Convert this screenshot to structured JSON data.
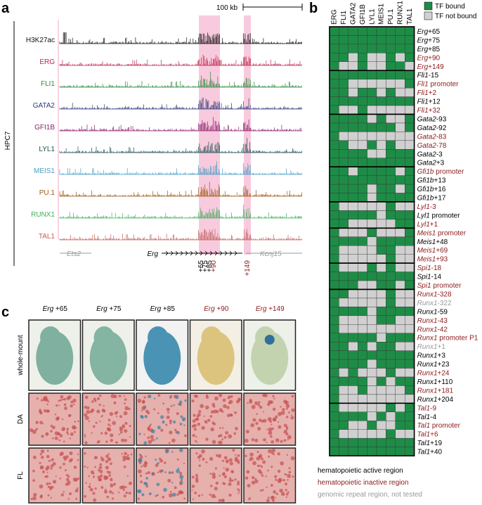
{
  "panel_a": {
    "letter": "a",
    "scale_bar": "100 kb",
    "cell_line": "HPC7",
    "tracks": [
      {
        "name": "H3K27ac",
        "color": "#111111"
      },
      {
        "name": "ERG",
        "color": "#c0264c"
      },
      {
        "name": "FLI1",
        "color": "#2e8b3e"
      },
      {
        "name": "GATA2",
        "color": "#2b3a7a"
      },
      {
        "name": "GFI1B",
        "color": "#8b1f6b"
      },
      {
        "name": "LYL1",
        "color": "#1f4f4f"
      },
      {
        "name": "MEIS1",
        "color": "#4a9cc7"
      },
      {
        "name": "PU.1",
        "color": "#9b5a1a"
      },
      {
        "name": "RUNX1",
        "color": "#3fae5c"
      },
      {
        "name": "TAL1",
        "color": "#c0605a"
      }
    ],
    "genes": [
      {
        "name": "Ets2",
        "color": "#999999"
      },
      {
        "name": "Erg",
        "color": "#000000"
      },
      {
        "name": "Kcnj15",
        "color": "#999999"
      }
    ],
    "peaks": [
      {
        "label": "+65",
        "color": "#000000"
      },
      {
        "label": "+75",
        "color": "#000000"
      },
      {
        "label": "+85",
        "color": "#000000"
      },
      {
        "label": "+90",
        "color": "#8b1a1a"
      },
      {
        "label": "+149",
        "color": "#8b1a1a"
      }
    ]
  },
  "panel_b": {
    "letter": "b",
    "legend": [
      {
        "label": "TF bound",
        "color": "#1e8c47"
      },
      {
        "label": "TF not bound",
        "color": "#d0d0d0"
      }
    ],
    "columns": [
      "ERG",
      "FLI1",
      "GATA2",
      "GFI1B",
      "LYL1",
      "MEIS1",
      "PU.1",
      "RUNX1",
      "TAL1"
    ],
    "groups": [
      [
        {
          "gene": "Erg",
          "suffix": "+65",
          "color": "#000000",
          "bound": [
            1,
            1,
            1,
            1,
            1,
            1,
            1,
            1,
            1
          ]
        },
        {
          "gene": "Erg",
          "suffix": "+75",
          "color": "#000000",
          "bound": [
            1,
            1,
            1,
            1,
            1,
            1,
            1,
            1,
            1
          ]
        },
        {
          "gene": "Erg",
          "suffix": "+85",
          "color": "#000000",
          "bound": [
            1,
            1,
            1,
            1,
            1,
            1,
            1,
            1,
            1
          ]
        },
        {
          "gene": "Erg",
          "suffix": "+90",
          "color": "#8b1a1a",
          "bound": [
            1,
            1,
            0,
            1,
            0,
            0,
            1,
            0,
            1
          ]
        },
        {
          "gene": "Erg",
          "suffix": "+149",
          "color": "#8b1a1a",
          "bound": [
            1,
            0,
            0,
            1,
            0,
            0,
            1,
            1,
            0
          ]
        }
      ],
      [
        {
          "gene": "Fli1",
          "suffix": "-15",
          "color": "#000000",
          "bound": [
            1,
            1,
            1,
            1,
            1,
            1,
            1,
            1,
            1
          ]
        },
        {
          "gene": "Fli1",
          "suffix": " promoter",
          "color": "#8b1a1a",
          "bound": [
            1,
            1,
            0,
            0,
            0,
            0,
            0,
            0,
            1
          ]
        },
        {
          "gene": "Fli1",
          "suffix": "+2",
          "color": "#8b1a1a",
          "bound": [
            1,
            1,
            0,
            1,
            1,
            0,
            1,
            0,
            0
          ]
        },
        {
          "gene": "Fli1",
          "suffix": "+12",
          "color": "#000000",
          "bound": [
            1,
            1,
            1,
            1,
            1,
            1,
            1,
            1,
            1
          ]
        },
        {
          "gene": "Fli1",
          "suffix": "+32",
          "color": "#8b1a1a",
          "bound": [
            1,
            0,
            0,
            1,
            0,
            0,
            0,
            0,
            0
          ]
        }
      ],
      [
        {
          "gene": "Gata2",
          "suffix": "-93",
          "color": "#000000",
          "bound": [
            1,
            1,
            1,
            1,
            0,
            1,
            0,
            0,
            1
          ]
        },
        {
          "gene": "Gata2",
          "suffix": "-92",
          "color": "#000000",
          "bound": [
            1,
            1,
            1,
            1,
            1,
            1,
            1,
            0,
            1
          ]
        },
        {
          "gene": "Gata2",
          "suffix": "-83",
          "color": "#8b1a1a",
          "bound": [
            1,
            0,
            0,
            0,
            0,
            0,
            0,
            0,
            0
          ]
        },
        {
          "gene": "Gata2",
          "suffix": "-78",
          "color": "#8b1a1a",
          "bound": [
            1,
            1,
            0,
            0,
            1,
            0,
            1,
            0,
            0
          ]
        },
        {
          "gene": "Gata2",
          "suffix": "-3",
          "color": "#000000",
          "bound": [
            1,
            1,
            1,
            1,
            0,
            0,
            1,
            1,
            1
          ]
        },
        {
          "gene": "Gata2",
          "suffix": "+3",
          "color": "#000000",
          "bound": [
            1,
            1,
            1,
            1,
            1,
            1,
            1,
            1,
            1
          ]
        }
      ],
      [
        {
          "gene": "Gfi1b",
          "suffix": " promoter",
          "color": "#8b1a1a",
          "bound": [
            1,
            1,
            0,
            1,
            1,
            1,
            1,
            0,
            1
          ]
        },
        {
          "gene": "Gfi1b",
          "suffix": "+13",
          "color": "#000000",
          "bound": [
            1,
            1,
            1,
            1,
            1,
            1,
            1,
            1,
            1
          ]
        },
        {
          "gene": "Gfi1b",
          "suffix": "+16",
          "color": "#000000",
          "bound": [
            1,
            1,
            1,
            1,
            0,
            1,
            1,
            0,
            1
          ]
        },
        {
          "gene": "Gfi1b",
          "suffix": "+17",
          "color": "#000000",
          "bound": [
            1,
            1,
            1,
            1,
            0,
            1,
            1,
            1,
            1
          ]
        }
      ],
      [
        {
          "gene": "Lyl1",
          "suffix": "-3",
          "color": "#8b1a1a",
          "bound": [
            1,
            0,
            0,
            0,
            0,
            0,
            1,
            0,
            0
          ]
        },
        {
          "gene": "Lyl1",
          "suffix": " promoter",
          "color": "#000000",
          "bound": [
            1,
            1,
            1,
            1,
            1,
            0,
            1,
            1,
            1
          ]
        },
        {
          "gene": "Lyl1",
          "suffix": "+1",
          "color": "#8b1a1a",
          "bound": [
            1,
            1,
            0,
            0,
            0,
            0,
            0,
            1,
            1
          ]
        }
      ],
      [
        {
          "gene": "Meis1",
          "suffix": " promoter",
          "color": "#8b1a1a",
          "bound": [
            1,
            0,
            0,
            0,
            1,
            0,
            0,
            0,
            1
          ]
        },
        {
          "gene": "Meis1",
          "suffix": "+48",
          "color": "#000000",
          "bound": [
            1,
            1,
            1,
            1,
            0,
            1,
            1,
            1,
            1
          ]
        },
        {
          "gene": "Meis1",
          "suffix": "+69",
          "color": "#8b1a1a",
          "bound": [
            1,
            0,
            0,
            0,
            0,
            1,
            1,
            0,
            0
          ]
        },
        {
          "gene": "Meis1",
          "suffix": "+93",
          "color": "#8b1a1a",
          "bound": [
            1,
            0,
            0,
            0,
            0,
            0,
            1,
            0,
            0
          ]
        }
      ],
      [
        {
          "gene": "Spi1",
          "suffix": "-18",
          "color": "#8b1a1a",
          "bound": [
            1,
            0,
            0,
            0,
            1,
            0,
            1,
            0,
            0
          ]
        },
        {
          "gene": "Spi1",
          "suffix": "-14",
          "color": "#000000",
          "bound": [
            1,
            1,
            1,
            1,
            1,
            1,
            1,
            1,
            1
          ]
        },
        {
          "gene": "Spi1",
          "suffix": " promoter",
          "color": "#8b1a1a",
          "bound": [
            1,
            1,
            1,
            0,
            0,
            1,
            1,
            0,
            1
          ]
        }
      ],
      [
        {
          "gene": "Runx1",
          "suffix": "-328",
          "color": "#8b1a1a",
          "bound": [
            1,
            1,
            0,
            0,
            0,
            0,
            1,
            0,
            0
          ]
        },
        {
          "gene": "Runx1",
          "suffix": "-322",
          "color": "#999999",
          "bound": [
            1,
            0,
            0,
            0,
            0,
            0,
            1,
            0,
            0
          ]
        },
        {
          "gene": "Runx1",
          "suffix": "-59",
          "color": "#000000",
          "bound": [
            1,
            1,
            1,
            1,
            0,
            1,
            1,
            1,
            1
          ]
        },
        {
          "gene": "Runx1",
          "suffix": "-43",
          "color": "#8b1a1a",
          "bound": [
            1,
            0,
            0,
            0,
            0,
            1,
            1,
            0,
            0
          ]
        },
        {
          "gene": "Runx1",
          "suffix": "-42",
          "color": "#8b1a1a",
          "bound": [
            1,
            0,
            0,
            0,
            0,
            0,
            0,
            0,
            0
          ]
        },
        {
          "gene": "Runx1",
          "suffix": " promoter P1",
          "color": "#8b1a1a",
          "bound": [
            1,
            1,
            1,
            1,
            1,
            0,
            1,
            1,
            1
          ]
        },
        {
          "gene": "Runx1",
          "suffix": "+1",
          "color": "#999999",
          "bound": [
            1,
            1,
            0,
            1,
            0,
            1,
            1,
            0,
            0
          ]
        },
        {
          "gene": "Runx1",
          "suffix": "+3",
          "color": "#000000",
          "bound": [
            1,
            1,
            1,
            1,
            1,
            1,
            1,
            1,
            1
          ]
        },
        {
          "gene": "Runx1",
          "suffix": "+23",
          "color": "#000000",
          "bound": [
            1,
            1,
            1,
            1,
            0,
            1,
            1,
            1,
            1
          ]
        },
        {
          "gene": "Runx1",
          "suffix": "+24",
          "color": "#8b1a1a",
          "bound": [
            1,
            0,
            1,
            0,
            0,
            0,
            1,
            0,
            0
          ]
        },
        {
          "gene": "Runx1",
          "suffix": "+110",
          "color": "#000000",
          "bound": [
            1,
            1,
            1,
            1,
            0,
            1,
            0,
            1,
            1
          ]
        },
        {
          "gene": "Runx1",
          "suffix": "+181",
          "color": "#8b1a1a",
          "bound": [
            1,
            0,
            0,
            1,
            0,
            0,
            0,
            0,
            1
          ]
        },
        {
          "gene": "Runx1",
          "suffix": "+204",
          "color": "#000000",
          "bound": [
            1,
            0,
            0,
            0,
            0,
            0,
            0,
            0,
            0
          ]
        }
      ],
      [
        {
          "gene": "Tal1",
          "suffix": "-9",
          "color": "#8b1a1a",
          "bound": [
            1,
            0,
            0,
            0,
            0,
            0,
            1,
            0,
            1
          ]
        },
        {
          "gene": "Tal1",
          "suffix": "-4",
          "color": "#000000",
          "bound": [
            1,
            1,
            1,
            1,
            0,
            1,
            0,
            1,
            1
          ]
        },
        {
          "gene": "Tal1",
          "suffix": " promoter",
          "color": "#8b1a1a",
          "bound": [
            1,
            1,
            0,
            0,
            1,
            0,
            0,
            1,
            1
          ]
        },
        {
          "gene": "Tal1",
          "suffix": "+6",
          "color": "#8b1a1a",
          "bound": [
            1,
            0,
            0,
            0,
            0,
            0,
            1,
            0,
            0
          ]
        },
        {
          "gene": "Tal1",
          "suffix": "+19",
          "color": "#000000",
          "bound": [
            1,
            1,
            1,
            1,
            1,
            1,
            1,
            1,
            1
          ]
        },
        {
          "gene": "Tal1",
          "suffix": "+40",
          "color": "#000000",
          "bound": [
            1,
            1,
            1,
            1,
            1,
            1,
            1,
            1,
            1
          ]
        }
      ]
    ],
    "region_legend": [
      {
        "label": "hematopoietic active region",
        "color": "#000000"
      },
      {
        "label": "hematopoietic inactive region",
        "color": "#8b1a1a"
      },
      {
        "label": "genomic repeat region, not tested",
        "color": "#999999"
      }
    ]
  },
  "panel_c": {
    "letter": "c",
    "columns": [
      {
        "gene": "Erg",
        "suffix": " +65",
        "color": "#000000"
      },
      {
        "gene": "Erg",
        "suffix": " +75",
        "color": "#000000"
      },
      {
        "gene": "Erg",
        "suffix": " +85",
        "color": "#000000"
      },
      {
        "gene": "Erg",
        "suffix": " +90",
        "color": "#8b1a1a"
      },
      {
        "gene": "Erg",
        "suffix": " +149",
        "color": "#8b1a1a"
      }
    ],
    "rows": [
      "whole-mount",
      "DA",
      "FL"
    ]
  }
}
